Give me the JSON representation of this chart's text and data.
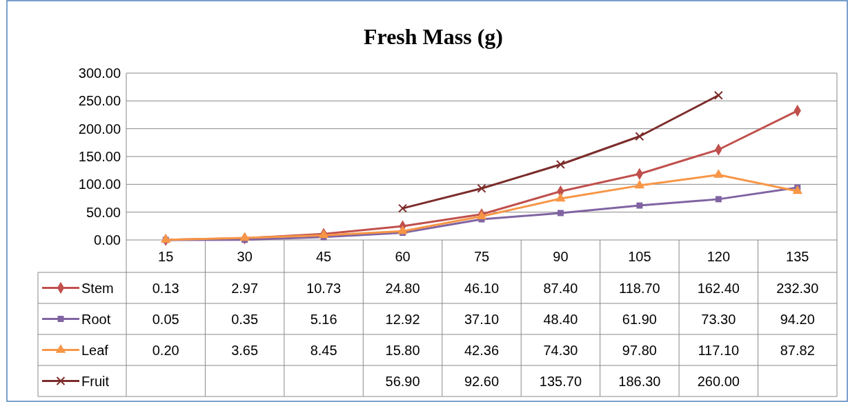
{
  "chart_data": {
    "type": "line",
    "title": "Fresh Mass (g)",
    "categories": [
      "15",
      "30",
      "45",
      "60",
      "75",
      "90",
      "105",
      "120",
      "135"
    ],
    "ylim": [
      0,
      300
    ],
    "yticks": [
      {
        "value": 0,
        "label": "0.00"
      },
      {
        "value": 50,
        "label": "50.00"
      },
      {
        "value": 100,
        "label": "100.00"
      },
      {
        "value": 150,
        "label": "150.00"
      },
      {
        "value": 200,
        "label": "200.00"
      },
      {
        "value": 250,
        "label": "250.00"
      },
      {
        "value": 300,
        "label": "300.00"
      }
    ],
    "grid": "y",
    "legend": "bottom",
    "series": [
      {
        "name": "Stem",
        "color": "#c0504d",
        "marker": "diamond",
        "values": [
          0.13,
          2.97,
          10.73,
          24.8,
          46.1,
          87.4,
          118.7,
          162.4,
          232.3
        ],
        "value_labels": [
          "0.13",
          "2.97",
          "10.73",
          "24.80",
          "46.10",
          "87.40",
          "118.70",
          "162.40",
          "232.30"
        ]
      },
      {
        "name": "Root",
        "color": "#8064a2",
        "marker": "square",
        "values": [
          0.05,
          0.35,
          5.16,
          12.92,
          37.1,
          48.4,
          61.9,
          73.3,
          94.2
        ],
        "value_labels": [
          "0.05",
          "0.35",
          "5.16",
          "12.92",
          "37.10",
          "48.40",
          "61.90",
          "73.30",
          "94.20"
        ]
      },
      {
        "name": "Leaf",
        "color": "#f79646",
        "marker": "triangle",
        "values": [
          0.2,
          3.65,
          8.45,
          15.8,
          42.36,
          74.3,
          97.8,
          117.1,
          87.82
        ],
        "value_labels": [
          "0.20",
          "3.65",
          "8.45",
          "15.80",
          "42.36",
          "74.30",
          "97.80",
          "117.10",
          "87.82"
        ]
      },
      {
        "name": "Fruit",
        "color": "#7b2c2a",
        "marker": "cross",
        "values": [
          null,
          null,
          null,
          56.9,
          92.6,
          135.7,
          186.3,
          260,
          null
        ],
        "value_labels": [
          null,
          null,
          null,
          "56.90",
          "92.60",
          "135.70",
          "186.30",
          "260.00",
          null
        ]
      }
    ]
  }
}
